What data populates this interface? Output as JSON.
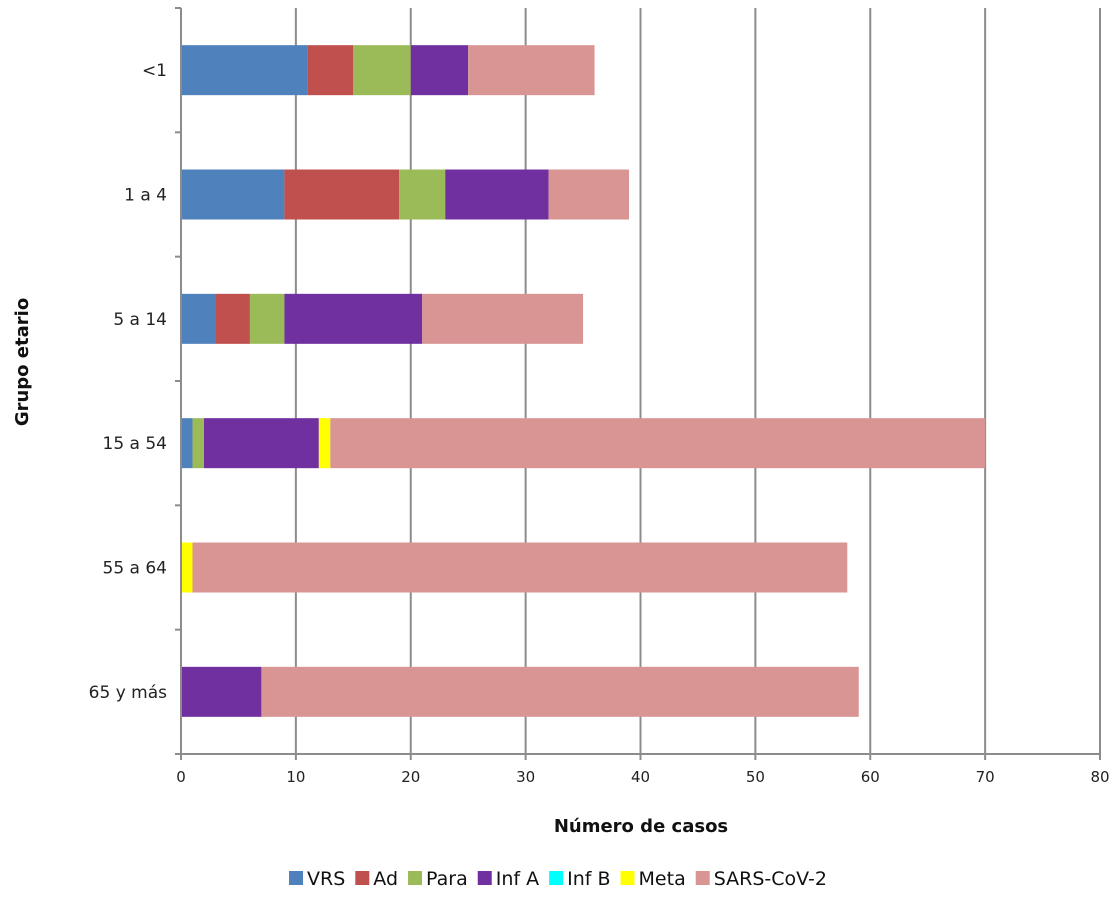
{
  "chart_data": {
    "type": "bar",
    "orientation": "horizontal",
    "stacked": true,
    "title": "",
    "xlabel": "Número de casos",
    "ylabel": "Grupo etario",
    "xlim": [
      0,
      80
    ],
    "x_ticks": [
      "0",
      "10",
      "20",
      "30",
      "40",
      "50",
      "60",
      "70",
      "80"
    ],
    "grid": "vertical",
    "legend_position": "bottom",
    "categories": [
      "<1",
      "1 a 4",
      "5 a 14",
      "15 a 54",
      "55 a 64",
      "65 y más"
    ],
    "series": [
      {
        "name": "VRS",
        "color": "#4f81bd",
        "values": [
          11,
          9,
          3,
          1,
          0,
          0
        ]
      },
      {
        "name": "Ad",
        "color": "#c0504d",
        "values": [
          4,
          10,
          3,
          0,
          0,
          0
        ]
      },
      {
        "name": "Para",
        "color": "#9bbb59",
        "values": [
          5,
          4,
          3,
          1,
          0,
          0
        ]
      },
      {
        "name": "Inf A",
        "color": "#7030a0",
        "values": [
          5,
          9,
          12,
          10,
          0,
          7
        ]
      },
      {
        "name": "Inf B",
        "color": "#00ffff",
        "values": [
          0,
          0,
          0,
          0,
          0,
          0
        ]
      },
      {
        "name": "Meta",
        "color": "#ffff00",
        "values": [
          0,
          0,
          0,
          1,
          1,
          0
        ]
      },
      {
        "name": "SARS-CoV-2",
        "color": "#d99594",
        "values": [
          11,
          7,
          14,
          57,
          57,
          52
        ]
      }
    ]
  }
}
